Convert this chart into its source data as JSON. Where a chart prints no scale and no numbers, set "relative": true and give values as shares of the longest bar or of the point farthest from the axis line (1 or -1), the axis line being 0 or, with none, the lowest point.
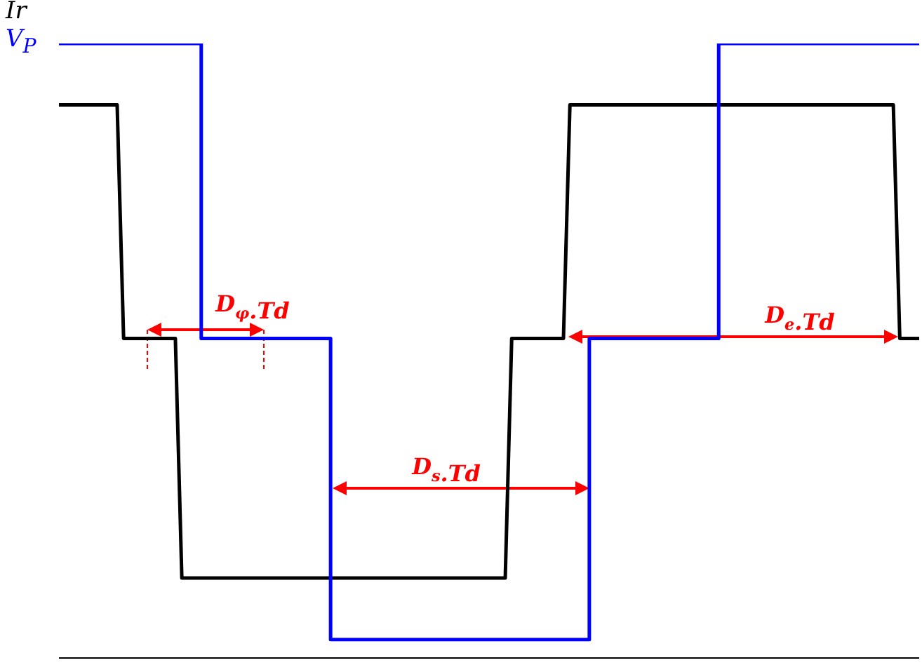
{
  "chart_data": {
    "type": "line",
    "relative": true,
    "legend": "top left",
    "categories": [
      null,
      null,
      null,
      null,
      null,
      null,
      null,
      null,
      null,
      null,
      null,
      null,
      null,
      null,
      null,
      null,
      null,
      null,
      null,
      null,
      null,
      null,
      null,
      null,
      null,
      null,
      null,
      null,
      null,
      null,
      null,
      null,
      null,
      null,
      null,
      null,
      null,
      null,
      null,
      null,
      null,
      null,
      null,
      null,
      null,
      null,
      null,
      null,
      null,
      null,
      null,
      null,
      null,
      null,
      null,
      null,
      null,
      null,
      null,
      null,
      null,
      null,
      null,
      null,
      null,
      null,
      null,
      null,
      null,
      null,
      null,
      null,
      null,
      null,
      null,
      null,
      null,
      null,
      null,
      null,
      null,
      null,
      null,
      null,
      null,
      null,
      null,
      null,
      null,
      null,
      null,
      null,
      null,
      null,
      null,
      null,
      null,
      null,
      null,
      null,
      null,
      null,
      null,
      null,
      null,
      null,
      null,
      null,
      null,
      null,
      null,
      null,
      null,
      null,
      null,
      null,
      null,
      null,
      null,
      null,
      null,
      null,
      null,
      null,
      null,
      null,
      null,
      null,
      null,
      null,
      null,
      null,
      null,
      null
    ],
    "series": [
      {
        "name": "Ir",
        "color": "#000000",
        "values": [
          0.9,
          0.9,
          0.9,
          0.9,
          0.9,
          0.9,
          0.9,
          0.9,
          0.9,
          0.9,
          0.52,
          0.52,
          0.52,
          0.52,
          0.52,
          0.52,
          0.52,
          0.52,
          0.52,
          0.13,
          0.13,
          0.13,
          0.13,
          0.13,
          0.13,
          0.13,
          0.13,
          0.13,
          0.13,
          0.13,
          0.13,
          0.13,
          0.13,
          0.13,
          0.13,
          0.13,
          0.13,
          0.13,
          0.13,
          0.13,
          0.13,
          0.13,
          0.13,
          0.13,
          0.13,
          0.13,
          0.13,
          0.13,
          0.13,
          0.13,
          0.13,
          0.13,
          0.13,
          0.13,
          0.13,
          0.13,
          0.13,
          0.13,
          0.13,
          0.13,
          0.13,
          0.13,
          0.13,
          0.13,
          0.13,
          0.13,
          0.13,
          0.13,
          0.13,
          0.13,
          0.52,
          0.52,
          0.52,
          0.52,
          0.52,
          0.52,
          0.52,
          0.52,
          0.52,
          0.9,
          0.9,
          0.9,
          0.9,
          0.9,
          0.9,
          0.9,
          0.9,
          0.9,
          0.9,
          0.9,
          0.9,
          0.9,
          0.9,
          0.9,
          0.9,
          0.9,
          0.9,
          0.9,
          0.9,
          0.9,
          0.9,
          0.9,
          0.9,
          0.9,
          0.9,
          0.9,
          0.9,
          0.9,
          0.9,
          0.9,
          0.9,
          0.9,
          0.9,
          0.9,
          0.9,
          0.9,
          0.9,
          0.9,
          0.9,
          0.9,
          0.9,
          0.9,
          0.9,
          0.9,
          0.9,
          0.9,
          0.9,
          0.9,
          0.9,
          0.9,
          0.52,
          0.52,
          0.52,
          0.52
        ]
      },
      {
        "name": "V$_{P}$",
        "type": "step",
        "color": "#0000ff",
        "values": [
          1,
          1,
          1,
          1,
          1,
          1,
          1,
          1,
          1,
          1,
          1,
          1,
          1,
          1,
          1,
          1,
          1,
          1,
          1,
          1,
          1,
          1,
          0.52,
          0.52,
          0.52,
          0.52,
          0.52,
          0.52,
          0.52,
          0.52,
          0.52,
          0.52,
          0.52,
          0.52,
          0.52,
          0.52,
          0.52,
          0.52,
          0.52,
          0.52,
          0.52,
          0.52,
          0.03,
          0.03,
          0.03,
          0.03,
          0.03,
          0.03,
          0.03,
          0.03,
          0.03,
          0.03,
          0.03,
          0.03,
          0.03,
          0.03,
          0.03,
          0.03,
          0.03,
          0.03,
          0.03,
          0.03,
          0.03,
          0.03,
          0.03,
          0.03,
          0.03,
          0.03,
          0.03,
          0.03,
          0.03,
          0.03,
          0.03,
          0.03,
          0.03,
          0.03,
          0.03,
          0.03,
          0.03,
          0.03,
          0.03,
          0.03,
          0.52,
          0.52,
          0.52,
          0.52,
          0.52,
          0.52,
          0.52,
          0.52,
          0.52,
          0.52,
          0.52,
          0.52,
          0.52,
          0.52,
          0.52,
          0.52,
          0.52,
          0.52,
          0.52,
          0.52,
          1,
          1,
          1,
          1,
          1,
          1,
          1,
          1,
          1,
          1,
          1,
          1,
          1,
          1,
          1,
          1,
          1,
          1,
          1,
          1,
          1,
          1,
          1,
          1,
          1,
          1,
          1,
          1,
          1,
          1,
          1,
          1
        ]
      }
    ],
    "annotations": [
      "D$_{φ}$.Td",
      "D$_{s}$.Td",
      "D$_{e}$.Td"
    ]
  }
}
